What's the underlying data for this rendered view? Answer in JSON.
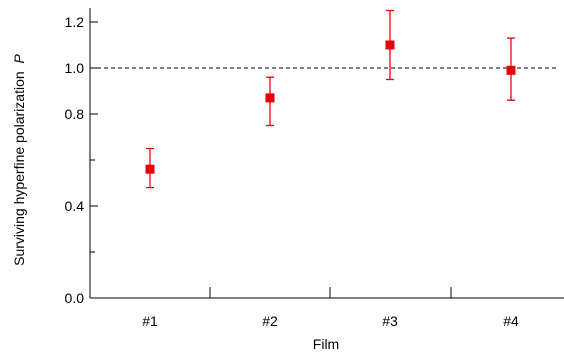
{
  "chart_data": {
    "type": "scatter",
    "categories": [
      "#1",
      "#2",
      "#3",
      "#4"
    ],
    "values": [
      0.56,
      0.87,
      1.1,
      0.99
    ],
    "error_low": [
      0.48,
      0.75,
      0.95,
      0.86
    ],
    "error_high": [
      0.65,
      0.96,
      1.25,
      1.13
    ],
    "xlabel": "Film",
    "ylabel": "Surviving hyperfine polarization",
    "ylabel_symbol": "P",
    "ylim": [
      0.0,
      1.3
    ],
    "yticks_major": [
      "0.0",
      "0.4",
      "0.8",
      "1.0",
      "1.2"
    ],
    "yticks_major_values": [
      0.0,
      0.4,
      0.8,
      1.0,
      1.2
    ],
    "yticks_minor_values": [
      0.2,
      0.6
    ],
    "reference_line": 1.0,
    "grid": false,
    "marker_color": "#e8000b"
  }
}
